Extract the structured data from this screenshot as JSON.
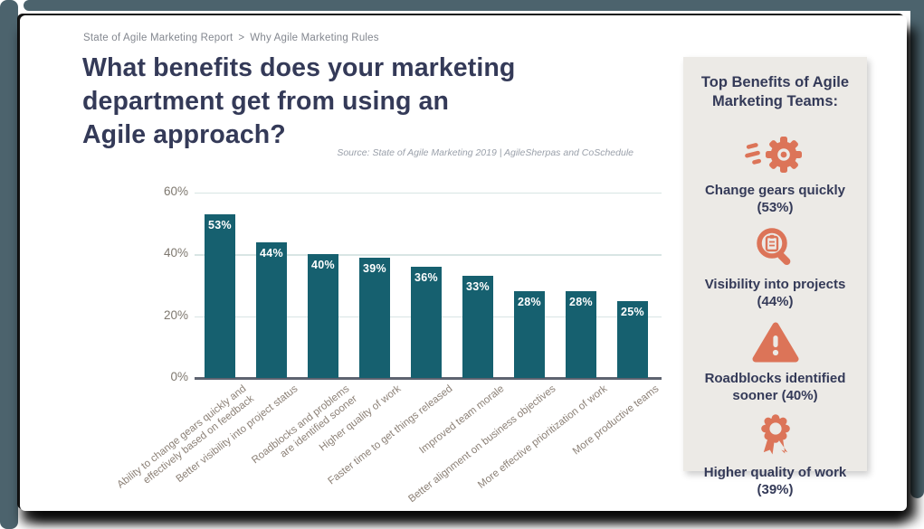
{
  "breadcrumb": {
    "section": "State of Agile Marketing Report",
    "separator": ">",
    "page": "Why Agile Marketing Rules"
  },
  "title": {
    "lines": [
      "What benefits does your marketing",
      "department get from using an",
      "Agile approach?"
    ]
  },
  "chart_data": {
    "type": "bar",
    "title": "What benefits does your marketing department get from using an Agile approach?",
    "source": "Source: State of Agile Marketing 2019 | AgileSherpas and CoSchedule",
    "categories": [
      "Ability to change gears quickly and\neffectively based on feedback",
      "Better visibility into project status",
      "Roadblocks and problems\nare identified sooner",
      "Higher quality of work",
      "Faster time to get things released",
      "Improved team morale",
      "Better alignment on business objectives",
      "More effective prioritization of work",
      "More productive teams"
    ],
    "values": [
      53,
      44,
      40,
      39,
      36,
      33,
      28,
      28,
      25
    ],
    "value_labels": [
      "53%",
      "44%",
      "40%",
      "39%",
      "36%",
      "33%",
      "28%",
      "28%",
      "25%"
    ],
    "yticks": [
      {
        "label": "0%",
        "value": 0
      },
      {
        "label": "20%",
        "value": 20
      },
      {
        "label": "40%",
        "value": 40
      },
      {
        "label": "60%",
        "value": 60
      }
    ],
    "ylim": [
      0,
      60
    ],
    "grid": true,
    "legend": false,
    "bar_color": "#16606F"
  },
  "sidebar": {
    "heading": "Top Benefits of Agile Marketing Teams:",
    "items": [
      {
        "icon": "speed-gear-icon",
        "caption": "Change gears quickly (53%)"
      },
      {
        "icon": "search-projects-icon",
        "caption": "Visibility into projects (44%)"
      },
      {
        "icon": "warning-triangle-icon",
        "caption": "Roadblocks identified sooner (40%)"
      },
      {
        "icon": "award-ribbon-icon",
        "caption": "Higher quality of work (39%)"
      }
    ]
  },
  "colors": {
    "backdrop_teal": "#4C636D",
    "bar_teal": "#16606F",
    "navy": "#343A58",
    "accent_orange": "#DC7458",
    "panel_bg": "#ECEAE6",
    "gridline": "#D8E5E4"
  }
}
